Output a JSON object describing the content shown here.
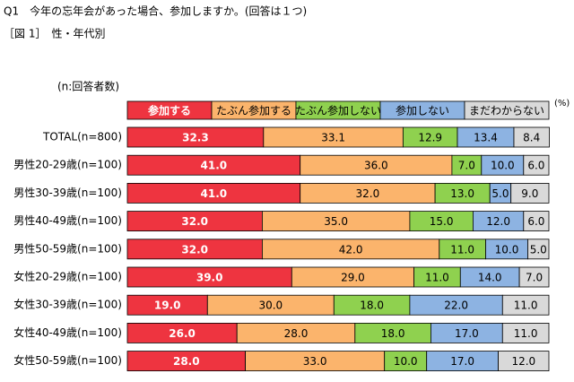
{
  "chart_data": {
    "type": "stacked-bar-horizontal",
    "title": "Q1　今年の忘年会があった場合、参加しますか。(回答は１つ)",
    "subtitle": "［図 1］　性・年代別",
    "annotation": "(n:回答者数)",
    "unit": "(%)",
    "xlim": [
      0,
      100
    ],
    "categories": [
      "TOTAL(n=800)",
      "男性20-29歳(n=100)",
      "男性30-39歳(n=100)",
      "男性40-49歳(n=100)",
      "男性50-59歳(n=100)",
      "女性20-29歳(n=100)",
      "女性30-39歳(n=100)",
      "女性40-49歳(n=100)",
      "女性50-59歳(n=100)"
    ],
    "series": [
      {
        "name": "参加する",
        "color": "#ee3440",
        "values": [
          32.3,
          41,
          41,
          32,
          32,
          39,
          19,
          26,
          28
        ],
        "value_labels": [
          "32.3",
          "41.0",
          "41.0",
          "32.0",
          "32.0",
          "39.0",
          "19.0",
          "26.0",
          "28.0"
        ]
      },
      {
        "name": "たぶん参加する",
        "color": "#fbb46c",
        "values": [
          33.1,
          36,
          32,
          35,
          42,
          29,
          30,
          28,
          33
        ],
        "value_labels": [
          "33.1",
          "36.0",
          "32.0",
          "35.0",
          "42.0",
          "29.0",
          "30.0",
          "28.0",
          "33.0"
        ]
      },
      {
        "name": "たぶん参加しない",
        "color": "#8fd14f",
        "values": [
          12.9,
          7,
          13,
          15,
          11,
          11,
          18,
          18,
          10
        ],
        "value_labels": [
          "12.9",
          "7.0",
          "13.0",
          "15.0",
          "11.0",
          "11.0",
          "18.0",
          "18.0",
          "10.0"
        ]
      },
      {
        "name": "参加しない",
        "color": "#8db3e2",
        "values": [
          13.4,
          10,
          5,
          12,
          10,
          14,
          22,
          17,
          17
        ],
        "value_labels": [
          "13.4",
          "10.0",
          "5.0",
          "12.0",
          "10.0",
          "14.0",
          "22.0",
          "17.0",
          "17.0"
        ]
      },
      {
        "name": "まだわからない",
        "color": "#d9d9d9",
        "values": [
          8.4,
          6,
          9,
          6,
          5,
          7,
          11,
          11,
          12
        ],
        "value_labels": [
          "8.4",
          "6.0",
          "9.0",
          "6.0",
          "5.0",
          "7.0",
          "11.0",
          "11.0",
          "12.0"
        ]
      }
    ]
  }
}
